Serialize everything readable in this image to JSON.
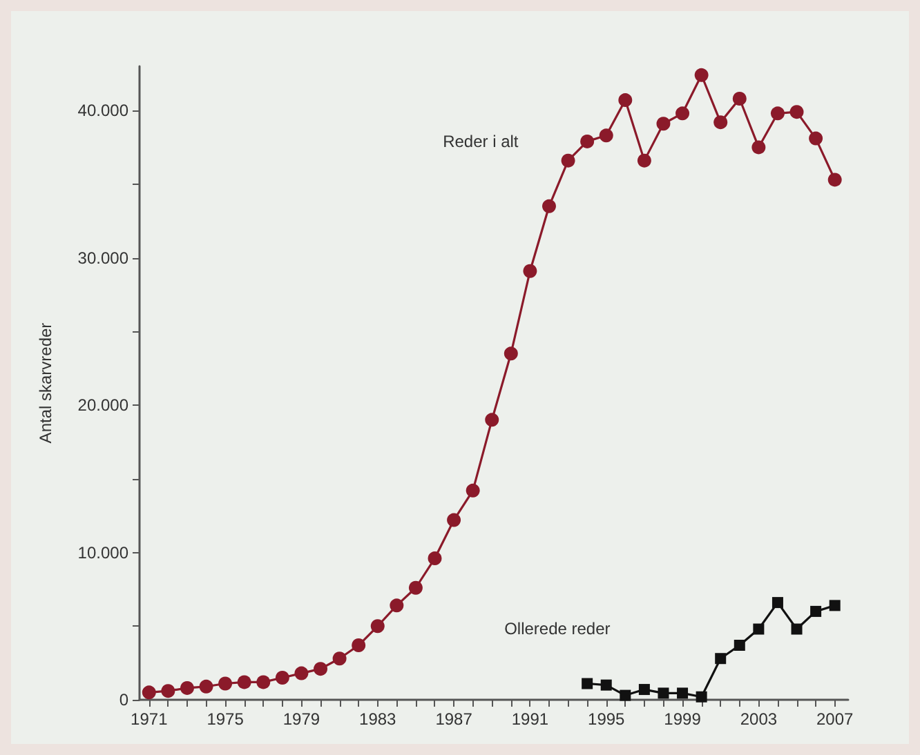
{
  "chart_data": {
    "type": "line",
    "ylabel": "Antal skarvreder",
    "x": [
      1971,
      1972,
      1973,
      1974,
      1975,
      1976,
      1977,
      1978,
      1979,
      1980,
      1981,
      1982,
      1983,
      1984,
      1985,
      1986,
      1987,
      1988,
      1989,
      1990,
      1991,
      1992,
      1993,
      1994,
      1995,
      1996,
      1997,
      1998,
      1999,
      2000,
      2001,
      2002,
      2003,
      2004,
      2005,
      2006,
      2007
    ],
    "series": [
      {
        "name": "Reder i alt",
        "color": "#8b1a2a",
        "marker": "circle",
        "values": [
          500,
          600,
          800,
          900,
          1100,
          1200,
          1200,
          1500,
          1800,
          2100,
          2800,
          3700,
          5000,
          6400,
          7600,
          9600,
          12200,
          14200,
          19000,
          23500,
          29100,
          33500,
          36600,
          37900,
          38300,
          40700,
          36600,
          39100,
          39800,
          42400,
          39200,
          40800,
          37500,
          39800,
          39900,
          38100,
          35300
        ]
      },
      {
        "name": "Ollerede reder",
        "color": "#111111",
        "marker": "square",
        "x": [
          1994,
          1995,
          1996,
          1997,
          1998,
          1999,
          2000,
          2001,
          2002,
          2003,
          2004,
          2005,
          2006,
          2007
        ],
        "values": [
          1100,
          1000,
          300,
          700,
          450,
          450,
          200,
          2800,
          3700,
          4800,
          6600,
          4800,
          6000,
          6400
        ]
      }
    ],
    "xlim": [
      1970.5,
      2007.7
    ],
    "xticks": [
      1971,
      {
        "value": 1972,
        "label": null
      },
      {
        "value": 1973,
        "label": null
      },
      {
        "value": 1974,
        "label": null
      },
      1975,
      {
        "value": 1976,
        "label": null
      },
      {
        "value": 1977,
        "label": null
      },
      {
        "value": 1978,
        "label": null
      },
      1979,
      {
        "value": 1980,
        "label": null
      },
      {
        "value": 1981,
        "label": null
      },
      {
        "value": 1982,
        "label": null
      },
      1983,
      {
        "value": 1984,
        "label": null
      },
      {
        "value": 1985,
        "label": null
      },
      {
        "value": 1986,
        "label": null
      },
      1987,
      {
        "value": 1988,
        "label": null
      },
      {
        "value": 1989,
        "label": null
      },
      {
        "value": 1990,
        "label": null
      },
      1991,
      {
        "value": 1992,
        "label": null
      },
      {
        "value": 1993,
        "label": null
      },
      {
        "value": 1994,
        "label": null
      },
      1995,
      {
        "value": 1996,
        "label": null
      },
      {
        "value": 1997,
        "label": null
      },
      {
        "value": 1998,
        "label": null
      },
      1999,
      {
        "value": 2000,
        "label": null
      },
      {
        "value": 2001,
        "label": null
      },
      {
        "value": 2002,
        "label": null
      },
      2003,
      {
        "value": 2004,
        "label": null
      },
      {
        "value": 2005,
        "label": null
      },
      {
        "value": 2006,
        "label": null
      },
      2007
    ],
    "ylim": [
      0,
      43000
    ],
    "yticks": [
      0,
      {
        "value": 5000,
        "label": null
      },
      {
        "value": 10000,
        "label": "10.000"
      },
      {
        "value": 15000,
        "label": null
      },
      {
        "value": 20000,
        "label": "20.000"
      },
      {
        "value": 25000,
        "label": null
      },
      {
        "value": 30000,
        "label": "30.000"
      },
      {
        "value": 35000,
        "label": null
      },
      {
        "value": 40000,
        "label": "40.000"
      }
    ],
    "grid": false,
    "legend": false,
    "line_style": "solid"
  }
}
